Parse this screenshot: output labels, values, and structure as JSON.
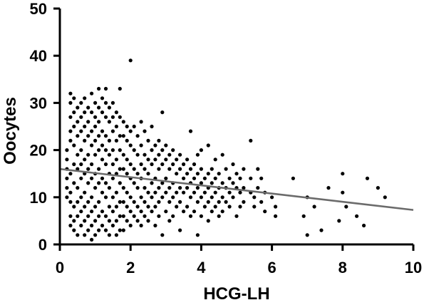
{
  "chart_data": {
    "type": "scatter",
    "title": "",
    "xlabel": "HCG-LH",
    "ylabel": "Oocytes",
    "xlim": [
      0,
      10
    ],
    "ylim": [
      0,
      50
    ],
    "x_ticks": [
      0,
      2,
      4,
      6,
      8,
      10
    ],
    "y_ticks": [
      0,
      10,
      20,
      30,
      40,
      50
    ],
    "grid": false,
    "legend": "none",
    "point_color": "#000000",
    "trend_color": "#6b6b6b",
    "trendline": {
      "x": [
        0,
        10
      ],
      "y": [
        16.0,
        7.3
      ]
    },
    "points": [
      [
        0.2,
        16
      ],
      [
        0.2,
        14
      ],
      [
        0.2,
        12
      ],
      [
        0.2,
        10
      ],
      [
        0.2,
        18
      ],
      [
        0.2,
        20
      ],
      [
        0.3,
        24
      ],
      [
        0.3,
        27
      ],
      [
        0.3,
        30
      ],
      [
        0.3,
        32
      ],
      [
        0.3,
        22
      ],
      [
        0.3,
        15
      ],
      [
        0.3,
        11
      ],
      [
        0.3,
        9
      ],
      [
        0.3,
        6
      ],
      [
        0.3,
        4
      ],
      [
        0.4,
        31
      ],
      [
        0.4,
        28
      ],
      [
        0.4,
        25
      ],
      [
        0.4,
        21
      ],
      [
        0.4,
        17
      ],
      [
        0.4,
        13
      ],
      [
        0.4,
        8
      ],
      [
        0.4,
        5
      ],
      [
        0.4,
        3
      ],
      [
        0.5,
        29
      ],
      [
        0.5,
        26
      ],
      [
        0.5,
        23
      ],
      [
        0.5,
        19
      ],
      [
        0.5,
        16
      ],
      [
        0.5,
        12
      ],
      [
        0.5,
        9
      ],
      [
        0.5,
        6
      ],
      [
        0.5,
        2
      ],
      [
        0.6,
        30
      ],
      [
        0.6,
        27
      ],
      [
        0.6,
        24
      ],
      [
        0.6,
        20
      ],
      [
        0.6,
        17
      ],
      [
        0.6,
        14
      ],
      [
        0.6,
        10
      ],
      [
        0.6,
        7
      ],
      [
        0.6,
        4
      ],
      [
        0.7,
        31
      ],
      [
        0.7,
        28
      ],
      [
        0.7,
        25
      ],
      [
        0.7,
        22
      ],
      [
        0.7,
        18
      ],
      [
        0.7,
        15
      ],
      [
        0.7,
        11
      ],
      [
        0.7,
        8
      ],
      [
        0.7,
        5
      ],
      [
        0.7,
        2
      ],
      [
        0.8,
        29
      ],
      [
        0.8,
        26
      ],
      [
        0.8,
        23
      ],
      [
        0.8,
        19
      ],
      [
        0.8,
        16
      ],
      [
        0.8,
        13
      ],
      [
        0.8,
        9
      ],
      [
        0.8,
        6
      ],
      [
        0.8,
        3
      ],
      [
        0.9,
        32
      ],
      [
        0.9,
        28
      ],
      [
        0.9,
        24
      ],
      [
        0.9,
        21
      ],
      [
        0.9,
        17
      ],
      [
        0.9,
        14
      ],
      [
        0.9,
        10
      ],
      [
        0.9,
        7
      ],
      [
        0.9,
        4
      ],
      [
        0.9,
        1
      ],
      [
        1.0,
        30
      ],
      [
        1.0,
        27
      ],
      [
        1.0,
        25
      ],
      [
        1.0,
        22
      ],
      [
        1.0,
        19
      ],
      [
        1.0,
        15
      ],
      [
        1.0,
        12
      ],
      [
        1.0,
        8
      ],
      [
        1.0,
        5
      ],
      [
        1.0,
        2
      ],
      [
        1.1,
        33
      ],
      [
        1.1,
        29
      ],
      [
        1.1,
        26
      ],
      [
        1.1,
        23
      ],
      [
        1.1,
        20
      ],
      [
        1.1,
        16
      ],
      [
        1.1,
        13
      ],
      [
        1.1,
        9
      ],
      [
        1.1,
        6
      ],
      [
        1.1,
        3
      ],
      [
        1.2,
        31
      ],
      [
        1.2,
        28
      ],
      [
        1.2,
        24
      ],
      [
        1.2,
        21
      ],
      [
        1.2,
        18
      ],
      [
        1.2,
        14
      ],
      [
        1.2,
        11
      ],
      [
        1.2,
        7
      ],
      [
        1.2,
        4
      ],
      [
        1.3,
        33
      ],
      [
        1.3,
        30
      ],
      [
        1.3,
        27
      ],
      [
        1.3,
        23
      ],
      [
        1.3,
        20
      ],
      [
        1.3,
        17
      ],
      [
        1.3,
        13
      ],
      [
        1.3,
        10
      ],
      [
        1.3,
        6
      ],
      [
        1.3,
        3
      ],
      [
        1.4,
        29
      ],
      [
        1.4,
        26
      ],
      [
        1.4,
        22
      ],
      [
        1.4,
        19
      ],
      [
        1.4,
        15
      ],
      [
        1.4,
        12
      ],
      [
        1.4,
        8
      ],
      [
        1.4,
        5
      ],
      [
        1.4,
        2
      ],
      [
        1.5,
        30
      ],
      [
        1.5,
        27
      ],
      [
        1.5,
        24
      ],
      [
        1.5,
        20
      ],
      [
        1.5,
        17
      ],
      [
        1.5,
        14
      ],
      [
        1.5,
        10
      ],
      [
        1.5,
        7
      ],
      [
        1.5,
        4
      ],
      [
        1.6,
        28
      ],
      [
        1.6,
        25
      ],
      [
        1.6,
        22
      ],
      [
        1.6,
        18
      ],
      [
        1.6,
        15
      ],
      [
        1.6,
        11
      ],
      [
        1.6,
        8
      ],
      [
        1.6,
        5
      ],
      [
        1.6,
        2
      ],
      [
        1.7,
        33
      ],
      [
        1.7,
        27
      ],
      [
        1.7,
        23
      ],
      [
        1.7,
        20
      ],
      [
        1.7,
        16
      ],
      [
        1.7,
        13
      ],
      [
        1.7,
        9
      ],
      [
        1.7,
        6
      ],
      [
        1.7,
        3
      ],
      [
        1.8,
        26
      ],
      [
        1.8,
        23
      ],
      [
        1.8,
        19
      ],
      [
        1.8,
        16
      ],
      [
        1.8,
        12
      ],
      [
        1.8,
        9
      ],
      [
        1.8,
        6
      ],
      [
        1.8,
        3
      ],
      [
        1.9,
        25
      ],
      [
        1.9,
        22
      ],
      [
        1.9,
        18
      ],
      [
        1.9,
        15
      ],
      [
        1.9,
        11
      ],
      [
        1.9,
        8
      ],
      [
        1.9,
        5
      ],
      [
        2.0,
        39
      ],
      [
        2.0,
        24
      ],
      [
        2.0,
        21
      ],
      [
        2.0,
        17
      ],
      [
        2.0,
        14
      ],
      [
        2.0,
        10
      ],
      [
        2.0,
        7
      ],
      [
        2.0,
        4
      ],
      [
        2.1,
        25
      ],
      [
        2.1,
        20
      ],
      [
        2.1,
        16
      ],
      [
        2.1,
        13
      ],
      [
        2.1,
        9
      ],
      [
        2.1,
        6
      ],
      [
        2.2,
        23
      ],
      [
        2.2,
        19
      ],
      [
        2.2,
        15
      ],
      [
        2.2,
        12
      ],
      [
        2.2,
        8
      ],
      [
        2.2,
        5
      ],
      [
        2.3,
        26
      ],
      [
        2.3,
        21
      ],
      [
        2.3,
        17
      ],
      [
        2.3,
        14
      ],
      [
        2.3,
        10
      ],
      [
        2.3,
        7
      ],
      [
        2.3,
        4
      ],
      [
        2.4,
        24
      ],
      [
        2.4,
        19
      ],
      [
        2.4,
        16
      ],
      [
        2.4,
        12
      ],
      [
        2.4,
        9
      ],
      [
        2.4,
        6
      ],
      [
        2.5,
        22
      ],
      [
        2.5,
        18
      ],
      [
        2.5,
        15
      ],
      [
        2.5,
        11
      ],
      [
        2.5,
        8
      ],
      [
        2.5,
        5
      ],
      [
        2.6,
        25
      ],
      [
        2.6,
        20
      ],
      [
        2.6,
        17
      ],
      [
        2.6,
        13
      ],
      [
        2.6,
        10
      ],
      [
        2.6,
        7
      ],
      [
        2.7,
        21
      ],
      [
        2.7,
        18
      ],
      [
        2.7,
        14
      ],
      [
        2.7,
        11
      ],
      [
        2.7,
        8
      ],
      [
        2.7,
        4
      ],
      [
        2.8,
        22
      ],
      [
        2.8,
        19
      ],
      [
        2.8,
        16
      ],
      [
        2.8,
        12
      ],
      [
        2.8,
        9
      ],
      [
        2.8,
        6
      ],
      [
        2.9,
        28
      ],
      [
        2.9,
        20
      ],
      [
        2.9,
        17
      ],
      [
        2.9,
        13
      ],
      [
        2.9,
        10
      ],
      [
        2.9,
        2
      ],
      [
        3.0,
        21
      ],
      [
        3.0,
        18
      ],
      [
        3.0,
        14
      ],
      [
        3.0,
        11
      ],
      [
        3.0,
        7
      ],
      [
        3.1,
        19
      ],
      [
        3.1,
        16
      ],
      [
        3.1,
        12
      ],
      [
        3.1,
        9
      ],
      [
        3.1,
        5
      ],
      [
        3.2,
        20
      ],
      [
        3.2,
        17
      ],
      [
        3.2,
        13
      ],
      [
        3.2,
        10
      ],
      [
        3.2,
        6
      ],
      [
        3.3,
        18
      ],
      [
        3.3,
        15
      ],
      [
        3.3,
        11
      ],
      [
        3.3,
        8
      ],
      [
        3.4,
        19
      ],
      [
        3.4,
        16
      ],
      [
        3.4,
        12
      ],
      [
        3.4,
        9
      ],
      [
        3.4,
        3
      ],
      [
        3.5,
        17
      ],
      [
        3.5,
        14
      ],
      [
        3.5,
        11
      ],
      [
        3.5,
        7
      ],
      [
        3.6,
        18
      ],
      [
        3.6,
        15
      ],
      [
        3.6,
        12
      ],
      [
        3.6,
        8
      ],
      [
        3.7,
        24
      ],
      [
        3.7,
        16
      ],
      [
        3.7,
        13
      ],
      [
        3.7,
        10
      ],
      [
        3.7,
        6
      ],
      [
        3.8,
        17
      ],
      [
        3.8,
        14
      ],
      [
        3.8,
        11
      ],
      [
        3.8,
        7
      ],
      [
        3.9,
        19
      ],
      [
        3.9,
        15
      ],
      [
        3.9,
        12
      ],
      [
        3.9,
        9
      ],
      [
        3.9,
        2
      ],
      [
        4.0,
        20
      ],
      [
        4.0,
        16
      ],
      [
        4.0,
        13
      ],
      [
        4.0,
        10
      ],
      [
        4.0,
        6
      ],
      [
        4.1,
        14
      ],
      [
        4.1,
        11
      ],
      [
        4.1,
        8
      ],
      [
        4.2,
        21
      ],
      [
        4.2,
        15
      ],
      [
        4.2,
        12
      ],
      [
        4.2,
        9
      ],
      [
        4.2,
        5
      ],
      [
        4.3,
        16
      ],
      [
        4.3,
        13
      ],
      [
        4.3,
        10
      ],
      [
        4.3,
        7
      ],
      [
        4.4,
        18
      ],
      [
        4.4,
        14
      ],
      [
        4.4,
        11
      ],
      [
        4.4,
        8
      ],
      [
        4.5,
        15
      ],
      [
        4.5,
        12
      ],
      [
        4.5,
        9
      ],
      [
        4.5,
        6
      ],
      [
        4.6,
        19
      ],
      [
        4.6,
        13
      ],
      [
        4.6,
        10
      ],
      [
        4.6,
        7
      ],
      [
        4.7,
        16
      ],
      [
        4.7,
        12
      ],
      [
        4.7,
        9
      ],
      [
        4.8,
        14
      ],
      [
        4.8,
        11
      ],
      [
        4.8,
        8
      ],
      [
        4.9,
        17
      ],
      [
        4.9,
        13
      ],
      [
        4.9,
        10
      ],
      [
        5.0,
        15
      ],
      [
        5.0,
        12
      ],
      [
        5.0,
        6
      ],
      [
        5.1,
        14
      ],
      [
        5.1,
        11
      ],
      [
        5.1,
        8
      ],
      [
        5.2,
        16
      ],
      [
        5.2,
        12
      ],
      [
        5.2,
        9
      ],
      [
        5.4,
        22
      ],
      [
        5.4,
        14
      ],
      [
        5.4,
        11
      ],
      [
        5.5,
        10
      ],
      [
        5.5,
        8
      ],
      [
        5.6,
        16
      ],
      [
        5.6,
        12
      ],
      [
        5.7,
        14
      ],
      [
        5.7,
        9
      ],
      [
        5.8,
        11
      ],
      [
        5.8,
        7
      ],
      [
        6.0,
        10
      ],
      [
        6.1,
        8
      ],
      [
        6.1,
        6
      ],
      [
        6.6,
        14
      ],
      [
        6.9,
        6
      ],
      [
        7.0,
        10
      ],
      [
        7.0,
        2
      ],
      [
        7.2,
        8
      ],
      [
        7.4,
        3
      ],
      [
        7.6,
        12
      ],
      [
        7.9,
        5
      ],
      [
        8.0,
        15
      ],
      [
        8.0,
        11
      ],
      [
        8.1,
        8
      ],
      [
        8.4,
        6
      ],
      [
        8.6,
        4
      ],
      [
        8.7,
        14
      ],
      [
        9.0,
        12
      ],
      [
        9.2,
        10
      ]
    ]
  }
}
